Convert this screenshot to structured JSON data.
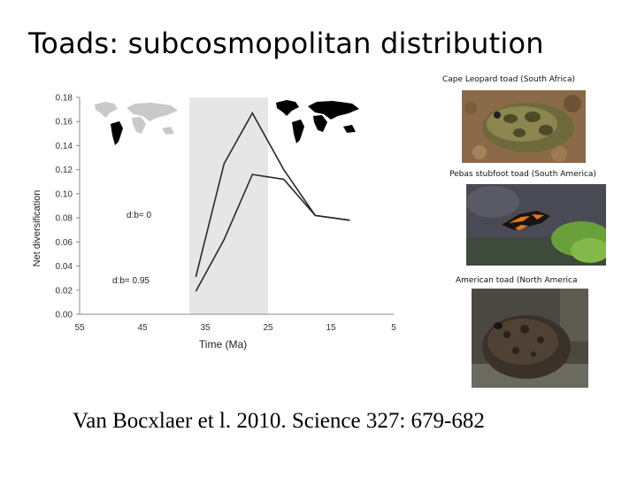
{
  "slide": {
    "title": "Toads: subcosmopolitan distribution",
    "citation": "Van Bocxlaer et l. 2010. Science 327: 679-682"
  },
  "photos": [
    {
      "caption": "Cape Leopard toad (South Africa)",
      "subject": "cape-leopard-toad"
    },
    {
      "caption": "Pebas stubfoot toad (South America)",
      "subject": "pebas-stubfoot-toad"
    },
    {
      "caption": "American toad (North America",
      "subject": "american-toad"
    }
  ],
  "chart_data": {
    "type": "line",
    "xlabel": "Time (Ma)",
    "ylabel": "Net diversification",
    "xlim": [
      55,
      5
    ],
    "ylim": [
      0,
      0.18
    ],
    "x_ticks": [
      "55",
      "45",
      "35",
      "25",
      "15",
      "5"
    ],
    "y_ticks": [
      "0.00",
      "0.02",
      "0.04",
      "0.06",
      "0.08",
      "0.10",
      "0.12",
      "0.14",
      "0.16",
      "0.18"
    ],
    "shaded_interval": [
      37.5,
      25
    ],
    "grid": false,
    "series": [
      {
        "name": "d:b= 0",
        "x": [
          36.5,
          32,
          27.5,
          22.5,
          17.5,
          12
        ],
        "y": [
          0.031,
          0.125,
          0.167,
          0.12,
          0.082,
          0.078
        ]
      },
      {
        "name": "d:b= 0.95",
        "x": [
          36.5,
          32,
          27.5,
          22.5,
          17.5,
          12
        ],
        "y": [
          0.019,
          0.062,
          0.116,
          0.112,
          0.082,
          0.078
        ]
      }
    ],
    "series_labels": [
      "d:b= 0",
      "d:b= 0.95"
    ],
    "insets": [
      "world-map-grey",
      "world-map-black"
    ]
  }
}
